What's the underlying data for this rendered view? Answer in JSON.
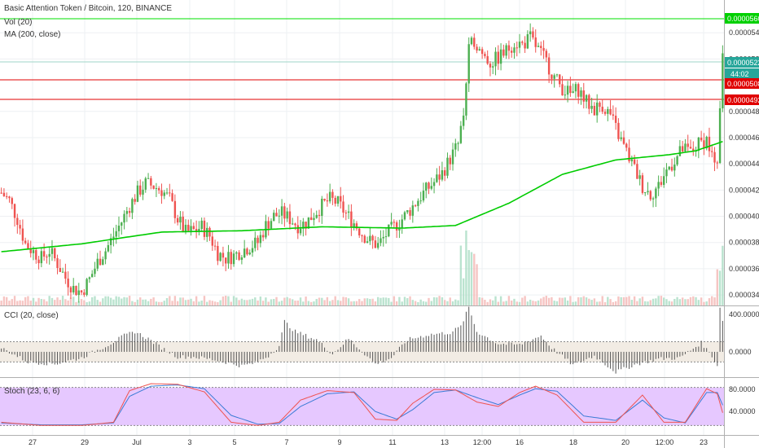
{
  "header": {
    "title": "Basic Attention Token / Bitcoin, 120, BINANCE",
    "vol_label": "Vol (20)",
    "ma_label": "MA (200, close)"
  },
  "cci_panel": {
    "label": "CCI (20, close)",
    "ticks": [
      "400.0000",
      "0.0000"
    ]
  },
  "stoch_panel": {
    "label": "Stoch (23, 6, 6)",
    "ticks": [
      "80.0000",
      "40.0000"
    ]
  },
  "price_axis": {
    "ticks": [
      "0.00005400",
      "0.00005200",
      "0.00004800",
      "0.00004600",
      "0.00004400",
      "0.00004200",
      "0.00004000",
      "0.00003800",
      "0.00003600",
      "0.00003400"
    ]
  },
  "price_tags": {
    "top_green": "0.00005600",
    "current": "0.00005227",
    "countdown": "44:02",
    "red_1": "0.00005083",
    "red_2": "0.00004926"
  },
  "time_axis": {
    "labels": [
      "27",
      "29",
      "Jul",
      "3",
      "5",
      "7",
      "9",
      "11",
      "13",
      "12:00",
      "16",
      "18",
      "20",
      "12:00",
      "23"
    ]
  },
  "colors": {
    "up": "#4caf50",
    "down": "#ef5350",
    "ma": "#00cc00",
    "hline_green": "#00e000",
    "hline_red": "#e00000",
    "cci_band": "#f2ece4",
    "stoch_band": "#e6c8ff",
    "k_line": "#ef5350",
    "d_line": "#3a7bd5"
  },
  "chart_data": [
    {
      "type": "candlestick",
      "title": "Basic Attention Token / Bitcoin, 120, BINANCE",
      "xlabel": "",
      "ylabel": "",
      "x_labels": [
        "27",
        "29",
        "Jul",
        "3",
        "5",
        "7",
        "9",
        "11",
        "13",
        "12:00",
        "16",
        "18",
        "20",
        "12:00",
        "23"
      ],
      "ylim": [
        3.32e-05,
        5.65e-05
      ],
      "last_price": 5.227e-05,
      "horizontal_levels": [
        5.6e-05,
        5.083e-05,
        4.926e-05
      ],
      "close_path": [
        [
          0,
          4.18e-05
        ],
        [
          3,
          4.12e-05
        ],
        [
          6,
          3.98e-05
        ],
        [
          9,
          3.79e-05
        ],
        [
          12,
          3.73e-05
        ],
        [
          15,
          3.68e-05
        ],
        [
          18,
          3.74e-05
        ],
        [
          21,
          3.64e-05
        ],
        [
          24,
          3.53e-05
        ],
        [
          27,
          3.45e-05
        ],
        [
          30,
          3.42e-05
        ],
        [
          33,
          3.52e-05
        ],
        [
          36,
          3.65e-05
        ],
        [
          39,
          3.74e-05
        ],
        [
          42,
          3.85e-05
        ],
        [
          45,
          3.96e-05
        ],
        [
          48,
          4.08e-05
        ],
        [
          51,
          4.18e-05
        ],
        [
          54,
          4.25e-05
        ],
        [
          57,
          4.23e-05
        ],
        [
          60,
          4.2e-05
        ],
        [
          63,
          4.13e-05
        ],
        [
          66,
          3.98e-05
        ],
        [
          69,
          3.88e-05
        ],
        [
          72,
          3.89e-05
        ],
        [
          75,
          3.92e-05
        ],
        [
          78,
          3.85e-05
        ],
        [
          81,
          3.72e-05
        ],
        [
          84,
          3.68e-05
        ],
        [
          87,
          3.7e-05
        ],
        [
          90,
          3.74e-05
        ],
        [
          93,
          3.77e-05
        ],
        [
          96,
          3.8e-05
        ],
        [
          99,
          3.93e-05
        ],
        [
          102,
          4e-05
        ],
        [
          105,
          4.02e-05
        ],
        [
          108,
          3.98e-05
        ],
        [
          111,
          3.93e-05
        ],
        [
          114,
          3.95e-05
        ],
        [
          117,
          4.02e-05
        ],
        [
          120,
          4.08e-05
        ],
        [
          123,
          4.13e-05
        ],
        [
          126,
          4.1e-05
        ],
        [
          129,
          4.02e-05
        ],
        [
          132,
          3.95e-05
        ],
        [
          135,
          3.87e-05
        ],
        [
          138,
          3.81e-05
        ],
        [
          141,
          3.78e-05
        ],
        [
          144,
          3.86e-05
        ],
        [
          147,
          3.92e-05
        ],
        [
          150,
          3.98e-05
        ],
        [
          153,
          4.05e-05
        ],
        [
          156,
          4.13e-05
        ],
        [
          159,
          4.2e-05
        ],
        [
          162,
          4.26e-05
        ],
        [
          165,
          4.33e-05
        ],
        [
          168,
          4.44e-05
        ],
        [
          171,
          4.55e-05
        ],
        [
          173,
          4.78e-05
        ],
        [
          175,
          5.26e-05
        ],
        [
          177,
          5.35e-05
        ],
        [
          180,
          5.24e-05
        ],
        [
          183,
          5.17e-05
        ],
        [
          186,
          5.21e-05
        ],
        [
          189,
          5.26e-05
        ],
        [
          192,
          5.33e-05
        ],
        [
          195,
          5.31e-05
        ],
        [
          198,
          5.36e-05
        ],
        [
          201,
          5.27e-05
        ],
        [
          204,
          5.18e-05
        ],
        [
          207,
          5.06e-05
        ],
        [
          210,
          4.98e-05
        ],
        [
          213,
          4.93e-05
        ],
        [
          216,
          4.97e-05
        ],
        [
          219,
          4.87e-05
        ],
        [
          222,
          4.82e-05
        ],
        [
          225,
          4.85e-05
        ],
        [
          228,
          4.77e-05
        ],
        [
          231,
          4.62e-05
        ],
        [
          234,
          4.49e-05
        ],
        [
          237,
          4.36e-05
        ],
        [
          240,
          4.23e-05
        ],
        [
          243,
          4.17e-05
        ],
        [
          246,
          4.23e-05
        ],
        [
          249,
          4.35e-05
        ],
        [
          252,
          4.43e-05
        ],
        [
          255,
          4.51e-05
        ],
        [
          258,
          4.49e-05
        ],
        [
          261,
          4.55e-05
        ],
        [
          264,
          4.59e-05
        ],
        [
          266,
          4.46e-05
        ],
        [
          268,
          4.35e-05
        ],
        [
          269,
          4.8e-05
        ],
        [
          270,
          5.23e-05
        ]
      ],
      "ma_path": [
        [
          0,
          3.73e-05
        ],
        [
          30,
          3.79e-05
        ],
        [
          60,
          3.88e-05
        ],
        [
          90,
          3.89e-05
        ],
        [
          120,
          3.92e-05
        ],
        [
          150,
          3.91e-05
        ],
        [
          170,
          3.93e-05
        ],
        [
          190,
          4.1e-05
        ],
        [
          210,
          4.32e-05
        ],
        [
          230,
          4.43e-05
        ],
        [
          250,
          4.47e-05
        ],
        [
          260,
          4.5e-05
        ],
        [
          270,
          4.57e-05
        ]
      ]
    },
    {
      "type": "bar",
      "title": "CCI (20, close)",
      "ylim": [
        -250,
        450
      ],
      "band": [
        -100,
        100
      ],
      "value_path": [
        [
          0,
          40
        ],
        [
          10,
          -100
        ],
        [
          20,
          -120
        ],
        [
          30,
          -60
        ],
        [
          40,
          70
        ],
        [
          46,
          160
        ],
        [
          50,
          200
        ],
        [
          55,
          130
        ],
        [
          60,
          40
        ],
        [
          66,
          -50
        ],
        [
          72,
          -50
        ],
        [
          80,
          -80
        ],
        [
          90,
          -140
        ],
        [
          95,
          -110
        ],
        [
          100,
          -40
        ],
        [
          104,
          60
        ],
        [
          106,
          300
        ],
        [
          110,
          200
        ],
        [
          118,
          120
        ],
        [
          124,
          -20
        ],
        [
          130,
          130
        ],
        [
          134,
          30
        ],
        [
          140,
          -120
        ],
        [
          146,
          -60
        ],
        [
          152,
          120
        ],
        [
          160,
          170
        ],
        [
          168,
          190
        ],
        [
          172,
          250
        ],
        [
          175,
          440
        ],
        [
          178,
          200
        ],
        [
          186,
          80
        ],
        [
          194,
          70
        ],
        [
          202,
          160
        ],
        [
          206,
          40
        ],
        [
          214,
          -130
        ],
        [
          222,
          -40
        ],
        [
          230,
          -200
        ],
        [
          238,
          -120
        ],
        [
          246,
          -70
        ],
        [
          254,
          -60
        ],
        [
          262,
          90
        ],
        [
          266,
          -40
        ],
        [
          268,
          -140
        ],
        [
          269,
          450
        ],
        [
          270,
          300
        ]
      ]
    },
    {
      "type": "line",
      "title": "Stoch (23, 6, 6)",
      "ylim": [
        5,
        95
      ],
      "band": [
        20,
        80
      ],
      "series": [
        {
          "name": "%K",
          "path": [
            [
              0,
              25
            ],
            [
              15,
              20
            ],
            [
              30,
              20
            ],
            [
              42,
              25
            ],
            [
              48,
              75
            ],
            [
              56,
              86
            ],
            [
              66,
              85
            ],
            [
              76,
              73
            ],
            [
              86,
              25
            ],
            [
              96,
              20
            ],
            [
              104,
              25
            ],
            [
              112,
              60
            ],
            [
              122,
              75
            ],
            [
              132,
              72
            ],
            [
              140,
              30
            ],
            [
              148,
              28
            ],
            [
              154,
              55
            ],
            [
              162,
              77
            ],
            [
              170,
              76
            ],
            [
              178,
              57
            ],
            [
              186,
              50
            ],
            [
              194,
              72
            ],
            [
              200,
              82
            ],
            [
              208,
              68
            ],
            [
              218,
              25
            ],
            [
              230,
              25
            ],
            [
              240,
              68
            ],
            [
              248,
              25
            ],
            [
              256,
              25
            ],
            [
              264,
              78
            ],
            [
              268,
              70
            ],
            [
              270,
              40
            ]
          ]
        },
        {
          "name": "%D",
          "path": [
            [
              0,
              24
            ],
            [
              15,
              21
            ],
            [
              30,
              21
            ],
            [
              42,
              24
            ],
            [
              48,
              66
            ],
            [
              56,
              82
            ],
            [
              66,
              84
            ],
            [
              76,
              78
            ],
            [
              86,
              36
            ],
            [
              96,
              22
            ],
            [
              104,
              23
            ],
            [
              112,
              50
            ],
            [
              122,
              70
            ],
            [
              132,
              73
            ],
            [
              140,
              42
            ],
            [
              148,
              30
            ],
            [
              154,
              45
            ],
            [
              162,
              72
            ],
            [
              170,
              76
            ],
            [
              178,
              64
            ],
            [
              186,
              53
            ],
            [
              194,
              68
            ],
            [
              200,
              78
            ],
            [
              208,
              74
            ],
            [
              218,
              35
            ],
            [
              230,
              28
            ],
            [
              240,
              60
            ],
            [
              248,
              32
            ],
            [
              256,
              24
            ],
            [
              264,
              72
            ],
            [
              268,
              72
            ],
            [
              270,
              52
            ]
          ]
        }
      ]
    }
  ]
}
